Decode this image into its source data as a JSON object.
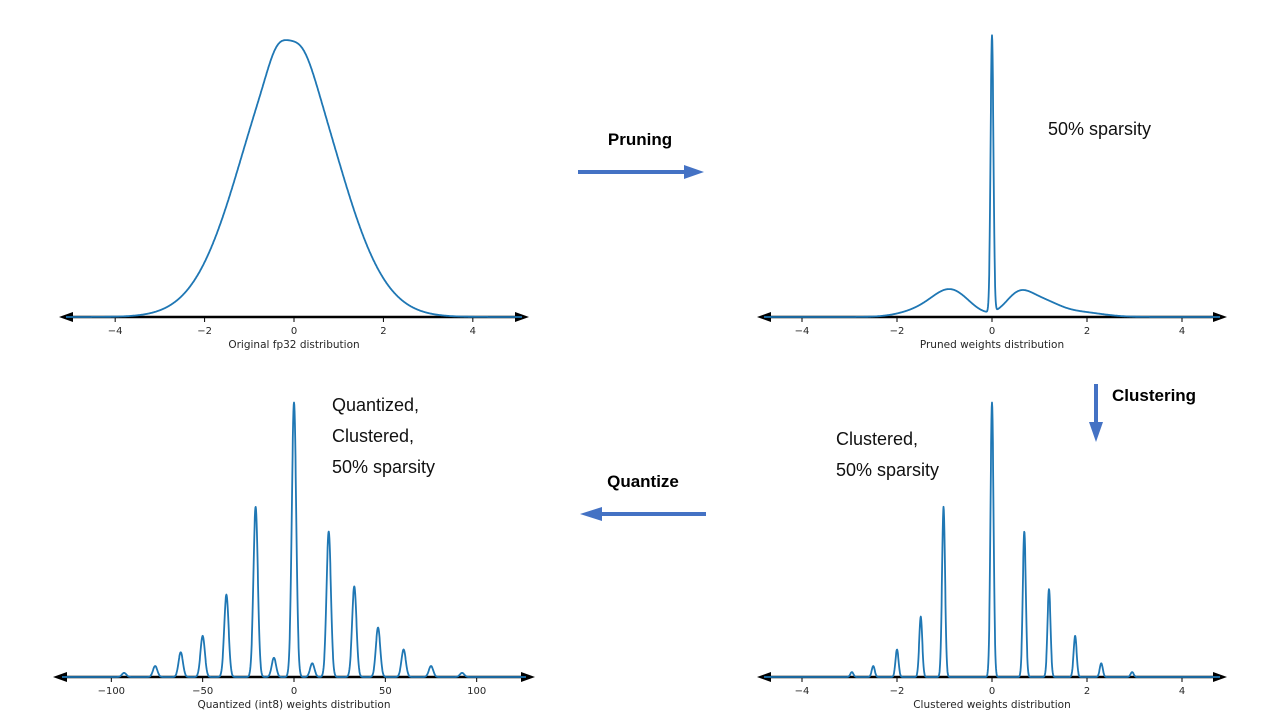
{
  "colors": {
    "curve": "#1f77b4",
    "axis": "#000000",
    "arrow": "#4472c4",
    "tick_label": "#262626",
    "note_text": "#111111"
  },
  "annotations": {
    "pruning_label": "Pruning",
    "clustering_label": "Clustering",
    "quantize_label": "Quantize",
    "sparsity_note": "50% sparsity",
    "clustered_note": "Clustered,\n50% sparsity",
    "quantized_note": "Quantized,\nClustered,\n50% sparsity"
  },
  "chart_data": [
    {
      "id": "original-fp32",
      "type": "line",
      "title": "Original fp32 distribution",
      "xlabel": "",
      "ylabel": "",
      "xlim": [
        -5.1,
        5.1
      ],
      "ylim": [
        0,
        1.06
      ],
      "grid": false,
      "xticks": [
        {
          "v": -4,
          "label": "−4"
        },
        {
          "v": -2,
          "label": "−2"
        },
        {
          "v": 0,
          "label": "0"
        },
        {
          "v": 2,
          "label": "2"
        },
        {
          "v": 4,
          "label": "4"
        }
      ],
      "curve_model": "gaussian_mixture",
      "components": [
        {
          "c": -0.1,
          "h": 0.96,
          "s": 1.07
        },
        {
          "c": -0.38,
          "h": 0.05,
          "s": 0.2
        },
        {
          "c": 0.2,
          "h": 0.045,
          "s": 0.25
        }
      ]
    },
    {
      "id": "pruned-weights",
      "type": "line",
      "title": "Pruned weights distribution",
      "xlabel": "",
      "ylabel": "",
      "xlim": [
        -4.8,
        4.8
      ],
      "ylim": [
        0,
        1.06
      ],
      "grid": false,
      "xticks": [
        {
          "v": -4,
          "label": "−4"
        },
        {
          "v": -2,
          "label": "−2"
        },
        {
          "v": 0,
          "label": "0"
        },
        {
          "v": 2,
          "label": "2"
        },
        {
          "v": 4,
          "label": "4"
        }
      ],
      "curve_model": "gaussian_mixture",
      "components": [
        {
          "c": 0,
          "h": 1.0,
          "s": 0.03
        },
        {
          "c": -0.85,
          "h": 0.09,
          "s": 0.38
        },
        {
          "c": -1.45,
          "h": 0.025,
          "s": 0.45
        },
        {
          "c": 0.55,
          "h": 0.075,
          "s": 0.28
        },
        {
          "c": 1.05,
          "h": 0.05,
          "s": 0.35
        },
        {
          "c": 1.8,
          "h": 0.018,
          "s": 0.5
        }
      ]
    },
    {
      "id": "clustered-weights",
      "type": "line",
      "title": "Clustered weights distribution",
      "xlabel": "",
      "ylabel": "",
      "xlim": [
        -4.8,
        4.8
      ],
      "ylim": [
        0,
        1.06
      ],
      "grid": false,
      "sigma": 0.032,
      "xticks": [
        {
          "v": -4,
          "label": "−4"
        },
        {
          "v": -2,
          "label": "−2"
        },
        {
          "v": 0,
          "label": "0"
        },
        {
          "v": 2,
          "label": "2"
        },
        {
          "v": 4,
          "label": "4"
        }
      ],
      "curve_model": "gaussian_mixture",
      "components": [
        {
          "c": -2.95,
          "h": 0.018
        },
        {
          "c": -2.5,
          "h": 0.04
        },
        {
          "c": -2.0,
          "h": 0.1
        },
        {
          "c": -1.5,
          "h": 0.22
        },
        {
          "c": -1.02,
          "h": 0.62
        },
        {
          "c": 0,
          "h": 1.0
        },
        {
          "c": 0.68,
          "h": 0.53
        },
        {
          "c": 1.2,
          "h": 0.32
        },
        {
          "c": 1.75,
          "h": 0.15
        },
        {
          "c": 2.3,
          "h": 0.05
        },
        {
          "c": 2.95,
          "h": 0.018
        }
      ]
    },
    {
      "id": "quantized-int8-weights",
      "type": "line",
      "title": "Quantized (int8) weights distribution",
      "xlabel": "",
      "ylabel": "",
      "xlim": [
        -127,
        127
      ],
      "ylim": [
        0,
        1.06
      ],
      "grid": false,
      "sigma": 1.2,
      "xticks": [
        {
          "v": -100,
          "label": "−100"
        },
        {
          "v": -50,
          "label": "−50"
        },
        {
          "v": 0,
          "label": "0"
        },
        {
          "v": 50,
          "label": "50"
        },
        {
          "v": 100,
          "label": "100"
        }
      ],
      "curve_model": "gaussian_mixture",
      "components": [
        {
          "c": -93,
          "h": 0.015
        },
        {
          "c": -76,
          "h": 0.04
        },
        {
          "c": -62,
          "h": 0.09
        },
        {
          "c": -50,
          "h": 0.15
        },
        {
          "c": -37,
          "h": 0.3
        },
        {
          "c": -21,
          "h": 0.62
        },
        {
          "c": -11,
          "h": 0.07
        },
        {
          "c": 0,
          "h": 1.0
        },
        {
          "c": 10,
          "h": 0.05
        },
        {
          "c": 19,
          "h": 0.53
        },
        {
          "c": 33,
          "h": 0.33
        },
        {
          "c": 46,
          "h": 0.18
        },
        {
          "c": 60,
          "h": 0.1
        },
        {
          "c": 75,
          "h": 0.04
        },
        {
          "c": 92,
          "h": 0.015
        }
      ]
    }
  ]
}
